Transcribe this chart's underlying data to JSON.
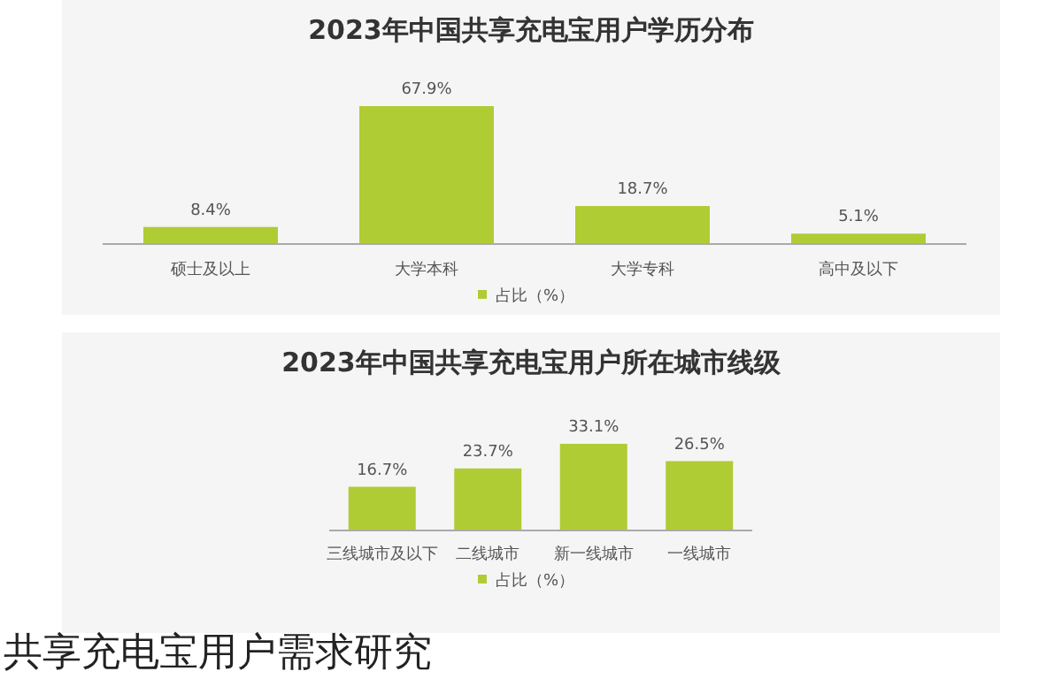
{
  "chart_data": [
    {
      "type": "bar",
      "title": "2023年中国共享充电宝用户学历分布",
      "categories": [
        "硕士及以上",
        "大学本科",
        "大学专科",
        "高中及以下"
      ],
      "series": [
        {
          "name": "占比（%）",
          "color": "#b0cc34",
          "values": [
            8.4,
            67.9,
            18.7,
            5.1
          ],
          "value_labels": [
            "8.4%",
            "67.9%",
            "18.7%",
            "5.1%"
          ]
        }
      ],
      "legend": "bottom"
    },
    {
      "type": "bar",
      "title": "2023年中国共享充电宝用户所在城市线级",
      "categories": [
        "三线城市及以下",
        "二线城市",
        "新一线城市",
        "一线城市"
      ],
      "series": [
        {
          "name": "占比（%）",
          "color": "#b0cc34",
          "values": [
            16.7,
            23.7,
            33.1,
            26.5
          ],
          "value_labels": [
            "16.7%",
            "23.7%",
            "33.1%",
            "26.5%"
          ]
        }
      ],
      "legend": "bottom",
      "annotations": [
        "共享充电宝用户需求研究"
      ]
    }
  ]
}
